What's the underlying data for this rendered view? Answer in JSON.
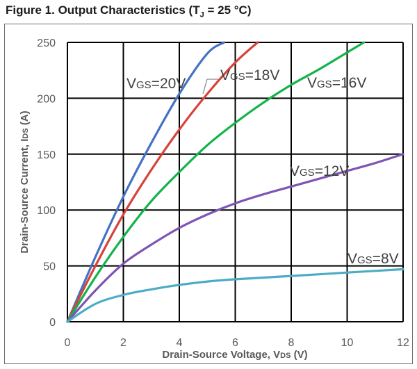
{
  "figure_title": "Figure 1. Output Characteristics (T",
  "figure_title_sub": "J",
  "figure_title_end": " = 25 °C)",
  "chart_data": {
    "type": "line",
    "xlabel": "Drain-Source Voltage, V",
    "xlabel_sub": "DS",
    "xlabel_unit": " (V)",
    "ylabel": "Drain-Source Current, I",
    "ylabel_sub": "DS",
    "ylabel_unit": " (A)",
    "xlim": [
      0,
      12
    ],
    "ylim": [
      0,
      250
    ],
    "xticks": [
      0,
      2,
      4,
      6,
      8,
      10,
      12
    ],
    "yticks": [
      0,
      50,
      100,
      150,
      200,
      250
    ],
    "grid": true,
    "series": [
      {
        "name": "VGS=20V",
        "label_main": "V",
        "label_sub": "GS",
        "label_end": "=20V",
        "color": "#4472c4",
        "x": [
          0,
          1,
          2,
          3,
          4,
          5,
          5.6
        ],
        "y": [
          0,
          58,
          112,
          160,
          204,
          240,
          250
        ]
      },
      {
        "name": "VGS=18V",
        "label_main": "V",
        "label_sub": "GS",
        "label_end": "=18V",
        "color": "#d9423a",
        "x": [
          0,
          1,
          2,
          3,
          4,
          5,
          6,
          6.8
        ],
        "y": [
          0,
          50,
          96,
          136,
          172,
          204,
          232,
          250
        ]
      },
      {
        "name": "VGS=16V",
        "label_main": "V",
        "label_sub": "GS",
        "label_end": "=16V",
        "color": "#13b34b",
        "x": [
          0,
          1,
          2,
          3,
          4,
          5,
          6,
          7,
          8,
          9,
          10,
          10.6
        ],
        "y": [
          0,
          40,
          76,
          108,
          134,
          158,
          178,
          196,
          212,
          226,
          241,
          250
        ]
      },
      {
        "name": "VGS=12V",
        "label_main": "V",
        "label_sub": "GS",
        "label_end": "=12V",
        "color": "#7f54b3",
        "x": [
          0,
          1,
          2,
          3,
          4,
          5,
          6,
          7,
          8,
          9,
          10,
          11,
          12
        ],
        "y": [
          0,
          28,
          52,
          69,
          84,
          96,
          106,
          114,
          121,
          128,
          135,
          142,
          150
        ]
      },
      {
        "name": "VGS=8V",
        "label_main": "V",
        "label_sub": "GS",
        "label_end": "=8V",
        "color": "#4bacc6",
        "x": [
          0,
          1,
          2,
          3,
          4,
          5,
          6,
          7,
          8,
          9,
          10,
          11,
          12
        ],
        "y": [
          0,
          16,
          24,
          29,
          33,
          36,
          38,
          39.5,
          41,
          42.5,
          44,
          45.5,
          47
        ]
      }
    ]
  }
}
